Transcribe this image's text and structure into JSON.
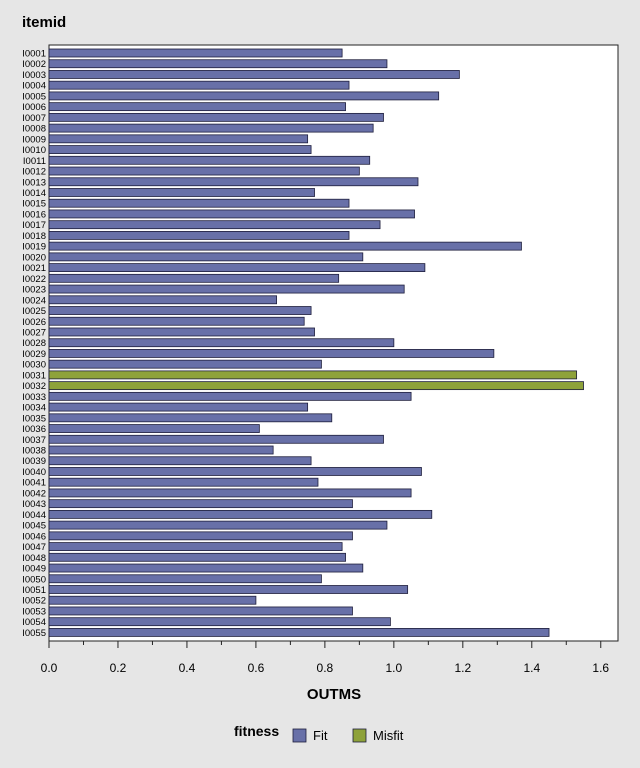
{
  "chart_data": {
    "type": "bar",
    "orientation": "horizontal",
    "title": "itemid",
    "xlabel": "OUTMS",
    "ylabel": "",
    "xlim": [
      0,
      1.65
    ],
    "x_ticks": [
      "0.0",
      "0.2",
      "0.4",
      "0.6",
      "0.8",
      "1.0",
      "1.2",
      "1.4",
      "1.6"
    ],
    "grid": false,
    "legend": {
      "title": "fitness",
      "position": "bottom",
      "entries": [
        {
          "name": "Fit",
          "color": "#6870a8"
        },
        {
          "name": "Misfit",
          "color": "#8ea23a"
        }
      ]
    },
    "categories": [
      "I0001",
      "I0002",
      "I0003",
      "I0004",
      "I0005",
      "I0006",
      "I0007",
      "I0008",
      "I0009",
      "I0010",
      "I0011",
      "I0012",
      "I0013",
      "I0014",
      "I0015",
      "I0016",
      "I0017",
      "I0018",
      "I0019",
      "I0020",
      "I0021",
      "I0022",
      "I0023",
      "I0024",
      "I0025",
      "I0026",
      "I0027",
      "I0028",
      "I0029",
      "I0030",
      "I0031",
      "I0032",
      "I0033",
      "I0034",
      "I0035",
      "I0036",
      "I0037",
      "I0038",
      "I0039",
      "I0040",
      "I0041",
      "I0042",
      "I0043",
      "I0044",
      "I0045",
      "I0046",
      "I0047",
      "I0048",
      "I0049",
      "I0050",
      "I0051",
      "I0052",
      "I0053",
      "I0054",
      "I0055"
    ],
    "values": [
      0.85,
      0.98,
      1.19,
      0.87,
      1.13,
      0.86,
      0.97,
      0.94,
      0.75,
      0.76,
      0.93,
      0.9,
      1.07,
      0.77,
      0.87,
      1.06,
      0.96,
      0.87,
      1.37,
      0.91,
      1.09,
      0.84,
      1.03,
      0.66,
      0.76,
      0.74,
      0.77,
      1.0,
      1.29,
      0.79,
      1.53,
      1.55,
      1.05,
      0.75,
      0.82,
      0.61,
      0.97,
      0.65,
      0.76,
      1.08,
      0.78,
      1.05,
      0.88,
      1.11,
      0.98,
      0.88,
      0.85,
      0.86,
      0.91,
      0.79,
      1.04,
      0.6,
      0.88,
      0.99,
      1.45
    ],
    "fitness": [
      "Fit",
      "Fit",
      "Fit",
      "Fit",
      "Fit",
      "Fit",
      "Fit",
      "Fit",
      "Fit",
      "Fit",
      "Fit",
      "Fit",
      "Fit",
      "Fit",
      "Fit",
      "Fit",
      "Fit",
      "Fit",
      "Fit",
      "Fit",
      "Fit",
      "Fit",
      "Fit",
      "Fit",
      "Fit",
      "Fit",
      "Fit",
      "Fit",
      "Fit",
      "Fit",
      "Misfit",
      "Misfit",
      "Fit",
      "Fit",
      "Fit",
      "Fit",
      "Fit",
      "Fit",
      "Fit",
      "Fit",
      "Fit",
      "Fit",
      "Fit",
      "Fit",
      "Fit",
      "Fit",
      "Fit",
      "Fit",
      "Fit",
      "Fit",
      "Fit",
      "Fit",
      "Fit",
      "Fit",
      "Fit"
    ]
  }
}
